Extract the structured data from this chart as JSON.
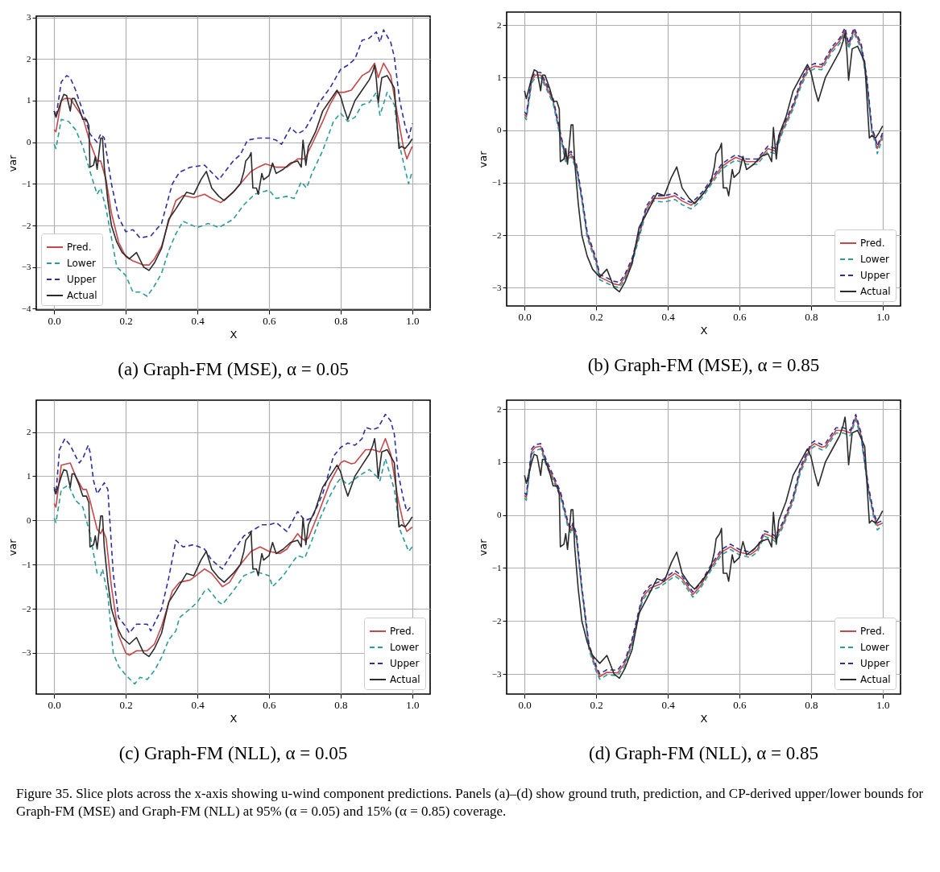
{
  "chart_data": [
    {
      "type": "line",
      "title": "(a) Graph-FM (MSE), α = 0.05",
      "xlabel": "X",
      "ylabel": "var",
      "xlim": [
        -0.05,
        1.05
      ],
      "ylim": [
        -4.03,
        3.03
      ],
      "xticks": [
        {
          "value": 0,
          "label": "0.0"
        },
        {
          "value": 0.2,
          "label": "0.2"
        },
        {
          "value": 0.4,
          "label": "0.4"
        },
        {
          "value": 0.6,
          "label": "0.6"
        },
        {
          "value": 0.8,
          "label": "0.8"
        },
        {
          "value": 1,
          "label": "1.0"
        }
      ],
      "yticks": [
        -4,
        -3,
        -2,
        -1,
        0,
        1,
        2,
        3
      ],
      "grid": true,
      "legend": "bottom left",
      "series": [
        {
          "name": "Pred.",
          "color": "#c8474a",
          "line_style": "solid",
          "x": [
            0,
            0.005,
            0.02,
            0.03,
            0.045,
            0.06,
            0.08,
            0.1,
            0.12,
            0.13,
            0.145,
            0.16,
            0.18,
            0.2,
            0.22,
            0.25,
            0.265,
            0.28,
            0.3,
            0.32,
            0.34,
            0.36,
            0.39,
            0.42,
            0.44,
            0.465,
            0.48,
            0.5,
            0.52,
            0.55,
            0.57,
            0.59,
            0.62,
            0.65,
            0.68,
            0.7,
            0.72,
            0.75,
            0.77,
            0.79,
            0.81,
            0.83,
            0.86,
            0.88,
            0.895,
            0.905,
            0.92,
            0.94,
            0.96,
            0.975,
            0.985,
            1.0
          ],
          "values": [
            0.3,
            0.25,
            1.0,
            1.05,
            1.05,
            0.85,
            0.6,
            0.0,
            -0.45,
            -0.45,
            -0.9,
            -1.7,
            -2.4,
            -2.75,
            -2.85,
            -2.95,
            -2.95,
            -2.8,
            -2.5,
            -1.9,
            -1.4,
            -1.28,
            -1.33,
            -1.25,
            -1.35,
            -1.45,
            -1.35,
            -1.2,
            -1.0,
            -0.7,
            -0.6,
            -0.52,
            -0.6,
            -0.6,
            -0.4,
            -0.4,
            -0.05,
            0.5,
            0.9,
            1.2,
            1.2,
            1.25,
            1.6,
            1.7,
            1.9,
            1.55,
            1.9,
            1.6,
            0.6,
            -0.1,
            -0.4,
            -0.1
          ]
        },
        {
          "name": "Lower",
          "color": "#2a9d96",
          "line_style": "dashed",
          "x": [
            0,
            0.005,
            0.02,
            0.04,
            0.06,
            0.08,
            0.1,
            0.12,
            0.13,
            0.145,
            0.16,
            0.175,
            0.2,
            0.22,
            0.24,
            0.26,
            0.28,
            0.3,
            0.32,
            0.34,
            0.36,
            0.4,
            0.43,
            0.46,
            0.5,
            0.53,
            0.56,
            0.6,
            0.62,
            0.65,
            0.67,
            0.69,
            0.705,
            0.72,
            0.75,
            0.78,
            0.8,
            0.82,
            0.84,
            0.86,
            0.88,
            0.9,
            0.91,
            0.93,
            0.95,
            0.965,
            0.98,
            0.99,
            1.0
          ],
          "values": [
            -0.05,
            -0.15,
            0.55,
            0.5,
            0.3,
            -0.1,
            -0.7,
            -1.25,
            -1.1,
            -1.6,
            -2.3,
            -3.0,
            -3.2,
            -3.6,
            -3.6,
            -3.7,
            -3.45,
            -3.15,
            -2.6,
            -2.2,
            -1.9,
            -2.05,
            -1.95,
            -2.05,
            -1.85,
            -1.5,
            -1.25,
            -1.15,
            -1.35,
            -1.3,
            -1.35,
            -0.95,
            -1.1,
            -0.75,
            -0.2,
            0.5,
            0.7,
            0.5,
            0.6,
            0.9,
            0.95,
            1.2,
            0.65,
            1.2,
            0.9,
            -0.1,
            -0.65,
            -1.0,
            -0.7
          ]
        },
        {
          "name": "Upper",
          "color": "#2e2e9e",
          "line_style": "dashed",
          "x": [
            0,
            0.005,
            0.02,
            0.035,
            0.045,
            0.06,
            0.08,
            0.1,
            0.12,
            0.13,
            0.14,
            0.16,
            0.18,
            0.2,
            0.22,
            0.24,
            0.27,
            0.3,
            0.33,
            0.35,
            0.38,
            0.42,
            0.46,
            0.5,
            0.52,
            0.54,
            0.57,
            0.6,
            0.62,
            0.635,
            0.66,
            0.68,
            0.7,
            0.72,
            0.74,
            0.77,
            0.8,
            0.82,
            0.84,
            0.86,
            0.88,
            0.9,
            0.91,
            0.92,
            0.94,
            0.95,
            0.965,
            0.98,
            0.99,
            1.0
          ],
          "values": [
            0.75,
            0.6,
            1.45,
            1.6,
            1.55,
            1.25,
            0.75,
            0.2,
            0.0,
            0.2,
            0.1,
            -1.0,
            -1.8,
            -2.15,
            -2.1,
            -2.3,
            -2.25,
            -1.95,
            -1.0,
            -0.72,
            -0.6,
            -0.55,
            -0.9,
            -0.45,
            -0.3,
            0.05,
            0.1,
            0.1,
            0.05,
            -0.05,
            0.35,
            0.2,
            0.3,
            0.6,
            0.95,
            1.3,
            1.75,
            1.85,
            2.0,
            2.45,
            2.5,
            2.65,
            2.4,
            2.7,
            2.4,
            2.05,
            1.0,
            0.4,
            0.1,
            0.45
          ]
        },
        {
          "name": "Actual",
          "color": "#2b2b2b",
          "line_style": "solid",
          "x": [
            0,
            0.005,
            0.02,
            0.027,
            0.035,
            0.045,
            0.05,
            0.057,
            0.07,
            0.08,
            0.09,
            0.097,
            0.1,
            0.11,
            0.115,
            0.12,
            0.13,
            0.135,
            0.14,
            0.15,
            0.16,
            0.175,
            0.19,
            0.21,
            0.23,
            0.25,
            0.265,
            0.28,
            0.3,
            0.32,
            0.34,
            0.37,
            0.39,
            0.41,
            0.425,
            0.44,
            0.46,
            0.475,
            0.5,
            0.52,
            0.53,
            0.535,
            0.545,
            0.55,
            0.555,
            0.565,
            0.57,
            0.58,
            0.585,
            0.6,
            0.61,
            0.62,
            0.64,
            0.66,
            0.68,
            0.69,
            0.695,
            0.703,
            0.71,
            0.73,
            0.75,
            0.77,
            0.79,
            0.8,
            0.81,
            0.82,
            0.84,
            0.86,
            0.88,
            0.89,
            0.895,
            0.9,
            0.905,
            0.915,
            0.93,
            0.95,
            0.963,
            0.97,
            0.98,
            0.99,
            1.0
          ],
          "values": [
            0.75,
            0.6,
            1.0,
            1.15,
            1.12,
            0.75,
            1.05,
            1.05,
            0.8,
            0.55,
            0.55,
            0.4,
            -0.6,
            -0.55,
            -0.35,
            -0.65,
            0.1,
            0.1,
            -0.6,
            -1.4,
            -2.0,
            -2.4,
            -2.65,
            -2.8,
            -2.65,
            -3.0,
            -3.08,
            -2.9,
            -2.55,
            -1.85,
            -1.6,
            -1.2,
            -1.25,
            -0.9,
            -0.7,
            -1.1,
            -1.3,
            -1.4,
            -1.2,
            -1.0,
            -0.7,
            -0.45,
            -0.35,
            -0.25,
            -1.1,
            -1.1,
            -1.25,
            -0.75,
            -0.9,
            -0.8,
            -0.5,
            -0.75,
            -0.65,
            -0.5,
            -0.45,
            -0.6,
            0.05,
            -0.55,
            -0.1,
            0.25,
            0.75,
            1.0,
            1.25,
            1.1,
            0.8,
            0.55,
            1.0,
            1.25,
            1.5,
            1.7,
            1.85,
            1.5,
            0.95,
            1.55,
            1.6,
            1.3,
            -0.15,
            -0.1,
            -0.15,
            -0.05,
            0.08
          ]
        }
      ]
    },
    {
      "type": "line",
      "title": "(b) Graph-FM (MSE), α = 0.85",
      "xlabel": "X",
      "ylabel": "var",
      "xlim": [
        -0.05,
        1.05
      ],
      "ylim": [
        -3.35,
        2.25
      ],
      "xticks": [
        {
          "value": 0,
          "label": "0.0"
        },
        {
          "value": 0.2,
          "label": "0.2"
        },
        {
          "value": 0.4,
          "label": "0.4"
        },
        {
          "value": 0.6,
          "label": "0.6"
        },
        {
          "value": 0.8,
          "label": "0.8"
        },
        {
          "value": 1,
          "label": "1.0"
        }
      ],
      "yticks": [
        -3,
        -2,
        -1,
        0,
        1,
        2
      ],
      "grid": true,
      "legend": "bottom right",
      "x": [
        0,
        0.005,
        0.02,
        0.03,
        0.045,
        0.06,
        0.08,
        0.1,
        0.115,
        0.13,
        0.145,
        0.16,
        0.175,
        0.2,
        0.21,
        0.25,
        0.265,
        0.28,
        0.3,
        0.32,
        0.34,
        0.36,
        0.39,
        0.42,
        0.44,
        0.465,
        0.48,
        0.5,
        0.52,
        0.55,
        0.57,
        0.59,
        0.62,
        0.65,
        0.68,
        0.7,
        0.72,
        0.75,
        0.77,
        0.79,
        0.81,
        0.83,
        0.86,
        0.88,
        0.895,
        0.905,
        0.92,
        0.94,
        0.955,
        0.97,
        0.98,
        0.985,
        1.0
      ],
      "series": [
        {
          "name": "Pred.",
          "color": "#c8474a",
          "line_style": "solid",
          "values": [
            0.3,
            0.25,
            0.95,
            1.05,
            1.05,
            0.85,
            0.55,
            -0.1,
            -0.55,
            -0.45,
            -0.7,
            -1.3,
            -2.0,
            -2.5,
            -2.8,
            -2.93,
            -2.95,
            -2.8,
            -2.5,
            -2.0,
            -1.5,
            -1.3,
            -1.3,
            -1.25,
            -1.35,
            -1.43,
            -1.35,
            -1.2,
            -1.0,
            -0.7,
            -0.6,
            -0.52,
            -0.6,
            -0.6,
            -0.35,
            -0.4,
            0.0,
            0.45,
            0.85,
            1.15,
            1.22,
            1.2,
            1.55,
            1.7,
            1.9,
            1.6,
            1.9,
            1.6,
            1.0,
            0.0,
            -0.2,
            -0.35,
            -0.1
          ]
        },
        {
          "name": "Lower",
          "color": "#2a9d96",
          "line_style": "dashed",
          "values": [
            0.25,
            0.2,
            0.9,
            1.0,
            1.0,
            0.8,
            0.5,
            -0.15,
            -0.6,
            -0.5,
            -0.75,
            -1.35,
            -2.05,
            -2.55,
            -2.85,
            -2.98,
            -3.0,
            -2.85,
            -2.55,
            -2.05,
            -1.55,
            -1.35,
            -1.37,
            -1.32,
            -1.42,
            -1.5,
            -1.42,
            -1.25,
            -1.05,
            -0.75,
            -0.65,
            -0.57,
            -0.65,
            -0.65,
            -0.4,
            -0.45,
            -0.05,
            0.4,
            0.8,
            1.1,
            1.17,
            1.15,
            1.5,
            1.65,
            1.85,
            1.55,
            1.85,
            1.55,
            0.95,
            -0.05,
            -0.25,
            -0.45,
            -0.15
          ]
        },
        {
          "name": "Upper",
          "color": "#2e2e9e",
          "line_style": "dashed",
          "values": [
            0.35,
            0.3,
            1.0,
            1.1,
            1.1,
            0.9,
            0.6,
            -0.05,
            -0.5,
            -0.4,
            -0.65,
            -1.25,
            -1.95,
            -2.45,
            -2.75,
            -2.88,
            -2.9,
            -2.75,
            -2.45,
            -1.95,
            -1.45,
            -1.25,
            -1.25,
            -1.2,
            -1.3,
            -1.38,
            -1.3,
            -1.15,
            -0.95,
            -0.65,
            -0.55,
            -0.47,
            -0.55,
            -0.55,
            -0.3,
            -0.35,
            0.05,
            0.5,
            0.9,
            1.2,
            1.27,
            1.25,
            1.6,
            1.75,
            1.95,
            1.65,
            1.95,
            1.65,
            1.05,
            0.05,
            -0.15,
            -0.3,
            -0.05
          ]
        },
        {
          "name": "Actual",
          "color": "#2b2b2b",
          "line_style": "solid",
          "x": [
            0,
            0.005,
            0.02,
            0.027,
            0.035,
            0.045,
            0.05,
            0.057,
            0.07,
            0.08,
            0.09,
            0.097,
            0.1,
            0.11,
            0.115,
            0.12,
            0.13,
            0.135,
            0.14,
            0.15,
            0.16,
            0.175,
            0.19,
            0.21,
            0.23,
            0.25,
            0.265,
            0.28,
            0.3,
            0.32,
            0.34,
            0.37,
            0.39,
            0.41,
            0.425,
            0.44,
            0.46,
            0.475,
            0.5,
            0.52,
            0.53,
            0.535,
            0.545,
            0.55,
            0.555,
            0.565,
            0.57,
            0.58,
            0.585,
            0.6,
            0.61,
            0.62,
            0.64,
            0.66,
            0.68,
            0.69,
            0.695,
            0.703,
            0.71,
            0.73,
            0.75,
            0.77,
            0.79,
            0.8,
            0.81,
            0.82,
            0.84,
            0.86,
            0.88,
            0.89,
            0.895,
            0.9,
            0.905,
            0.915,
            0.93,
            0.95,
            0.963,
            0.97,
            0.98,
            0.99,
            1.0
          ],
          "values": [
            0.75,
            0.6,
            1.0,
            1.15,
            1.12,
            0.75,
            1.05,
            1.05,
            0.8,
            0.55,
            0.55,
            0.4,
            -0.6,
            -0.55,
            -0.35,
            -0.65,
            0.1,
            0.1,
            -0.6,
            -1.4,
            -2.0,
            -2.4,
            -2.65,
            -2.8,
            -2.65,
            -3.0,
            -3.08,
            -2.9,
            -2.55,
            -1.85,
            -1.6,
            -1.2,
            -1.25,
            -0.9,
            -0.7,
            -1.1,
            -1.3,
            -1.4,
            -1.2,
            -1.0,
            -0.7,
            -0.45,
            -0.35,
            -0.25,
            -1.1,
            -1.1,
            -1.25,
            -0.75,
            -0.9,
            -0.8,
            -0.5,
            -0.75,
            -0.65,
            -0.5,
            -0.45,
            -0.6,
            0.05,
            -0.55,
            -0.1,
            0.25,
            0.75,
            1.0,
            1.25,
            1.1,
            0.8,
            0.55,
            1.0,
            1.25,
            1.5,
            1.7,
            1.85,
            1.5,
            0.95,
            1.55,
            1.6,
            1.3,
            -0.15,
            -0.1,
            -0.15,
            -0.05,
            0.08
          ]
        }
      ]
    },
    {
      "type": "line",
      "title": "(c) Graph-FM (NLL), α = 0.05",
      "xlabel": "X",
      "ylabel": "var",
      "xlim": [
        -0.05,
        1.05
      ],
      "ylim": [
        -3.93,
        2.72
      ],
      "xticks": [
        {
          "value": 0,
          "label": "0.0"
        },
        {
          "value": 0.2,
          "label": "0.2"
        },
        {
          "value": 0.4,
          "label": "0.4"
        },
        {
          "value": 0.6,
          "label": "0.6"
        },
        {
          "value": 0.8,
          "label": "0.8"
        },
        {
          "value": 1,
          "label": "1.0"
        }
      ],
      "yticks": [
        -3,
        -2,
        -1,
        0,
        1,
        2
      ],
      "grid": true,
      "legend": "bottom right",
      "series": [
        {
          "name": "Pred.",
          "color": "#c8474a",
          "line_style": "solid",
          "x": [
            0,
            0.005,
            0.02,
            0.045,
            0.06,
            0.08,
            0.09,
            0.1,
            0.12,
            0.13,
            0.135,
            0.145,
            0.16,
            0.18,
            0.2,
            0.21,
            0.23,
            0.26,
            0.28,
            0.3,
            0.33,
            0.35,
            0.38,
            0.42,
            0.44,
            0.47,
            0.49,
            0.52,
            0.55,
            0.575,
            0.6,
            0.63,
            0.65,
            0.68,
            0.69,
            0.7,
            0.71,
            0.74,
            0.77,
            0.8,
            0.81,
            0.83,
            0.84,
            0.87,
            0.89,
            0.91,
            0.925,
            0.94,
            0.96,
            0.975,
            0.985,
            1.0
          ],
          "values": [
            0.38,
            0.3,
            1.25,
            1.3,
            1.0,
            0.7,
            0.7,
            0.45,
            -0.2,
            -0.3,
            -0.2,
            -0.4,
            -1.5,
            -2.6,
            -3.0,
            -3.05,
            -2.95,
            -2.95,
            -2.8,
            -2.4,
            -1.6,
            -1.4,
            -1.35,
            -1.1,
            -1.2,
            -1.5,
            -1.4,
            -1.0,
            -0.7,
            -0.6,
            -0.7,
            -0.75,
            -0.65,
            -0.3,
            -0.4,
            -0.45,
            -0.4,
            0.2,
            0.85,
            1.3,
            1.35,
            1.28,
            1.3,
            1.6,
            1.6,
            1.55,
            1.85,
            1.5,
            0.5,
            -0.05,
            -0.25,
            -0.15
          ]
        },
        {
          "name": "Lower",
          "color": "#2a9d96",
          "line_style": "dashed",
          "x": [
            0,
            0.005,
            0.02,
            0.04,
            0.06,
            0.08,
            0.1,
            0.12,
            0.13,
            0.135,
            0.15,
            0.165,
            0.18,
            0.2,
            0.225,
            0.24,
            0.26,
            0.28,
            0.3,
            0.32,
            0.34,
            0.35,
            0.38,
            0.4,
            0.42,
            0.43,
            0.46,
            0.47,
            0.5,
            0.53,
            0.56,
            0.58,
            0.6,
            0.61,
            0.64,
            0.67,
            0.68,
            0.7,
            0.72,
            0.74,
            0.77,
            0.79,
            0.8,
            0.82,
            0.85,
            0.88,
            0.9,
            0.91,
            0.925,
            0.95,
            0.965,
            0.98,
            0.99,
            1.0
          ],
          "values": [
            0.05,
            -0.05,
            0.7,
            0.8,
            0.45,
            0.3,
            -0.3,
            -1.2,
            -1.25,
            -1.1,
            -1.7,
            -3.0,
            -3.3,
            -3.5,
            -3.7,
            -3.55,
            -3.6,
            -3.4,
            -3.1,
            -2.7,
            -2.5,
            -2.2,
            -2.0,
            -1.85,
            -1.6,
            -1.55,
            -1.85,
            -1.9,
            -1.6,
            -1.25,
            -1.15,
            -1.2,
            -1.25,
            -1.5,
            -1.25,
            -0.9,
            -0.8,
            -0.85,
            -0.45,
            0.0,
            0.55,
            0.85,
            0.95,
            0.8,
            1.0,
            1.15,
            1.0,
            0.9,
            1.4,
            0.7,
            -0.2,
            -0.5,
            -0.7,
            -0.6
          ]
        },
        {
          "name": "Upper",
          "color": "#2e2e9e",
          "line_style": "dashed",
          "x": [
            0,
            0.005,
            0.015,
            0.03,
            0.045,
            0.06,
            0.07,
            0.08,
            0.095,
            0.1,
            0.11,
            0.12,
            0.14,
            0.15,
            0.165,
            0.18,
            0.2,
            0.21,
            0.23,
            0.26,
            0.27,
            0.3,
            0.32,
            0.34,
            0.36,
            0.39,
            0.42,
            0.44,
            0.47,
            0.5,
            0.53,
            0.56,
            0.58,
            0.6,
            0.62,
            0.65,
            0.68,
            0.7,
            0.72,
            0.75,
            0.78,
            0.8,
            0.82,
            0.84,
            0.86,
            0.87,
            0.89,
            0.905,
            0.925,
            0.94,
            0.95,
            0.96,
            0.975,
            0.985,
            1.0
          ],
          "values": [
            0.7,
            0.6,
            1.6,
            1.85,
            1.7,
            1.45,
            1.3,
            1.4,
            1.7,
            1.55,
            0.9,
            0.6,
            0.85,
            0.7,
            -1.2,
            -2.2,
            -2.4,
            -2.55,
            -2.35,
            -2.35,
            -2.5,
            -2.0,
            -1.3,
            -0.45,
            -0.6,
            -0.55,
            -0.65,
            -0.9,
            -1.1,
            -0.7,
            -0.35,
            -0.2,
            -0.1,
            -0.1,
            -0.05,
            -0.25,
            0.2,
            0.0,
            0.05,
            0.6,
            1.45,
            1.65,
            1.75,
            1.7,
            1.85,
            2.1,
            2.05,
            2.1,
            2.4,
            2.25,
            1.95,
            1.1,
            0.5,
            0.2,
            0.35
          ]
        },
        {
          "name": "Actual",
          "color": "#2b2b2b",
          "line_style": "solid",
          "x": [
            0,
            0.005,
            0.02,
            0.027,
            0.035,
            0.045,
            0.05,
            0.057,
            0.07,
            0.08,
            0.09,
            0.097,
            0.1,
            0.11,
            0.115,
            0.12,
            0.13,
            0.135,
            0.14,
            0.15,
            0.16,
            0.175,
            0.19,
            0.21,
            0.23,
            0.25,
            0.265,
            0.28,
            0.3,
            0.32,
            0.34,
            0.37,
            0.39,
            0.41,
            0.425,
            0.44,
            0.46,
            0.475,
            0.5,
            0.52,
            0.53,
            0.535,
            0.545,
            0.55,
            0.555,
            0.565,
            0.57,
            0.58,
            0.585,
            0.6,
            0.61,
            0.62,
            0.64,
            0.66,
            0.68,
            0.69,
            0.695,
            0.703,
            0.71,
            0.73,
            0.75,
            0.77,
            0.79,
            0.8,
            0.81,
            0.82,
            0.84,
            0.86,
            0.88,
            0.89,
            0.895,
            0.9,
            0.905,
            0.915,
            0.93,
            0.95,
            0.963,
            0.97,
            0.98,
            0.99,
            1.0
          ],
          "values": [
            0.75,
            0.6,
            1.0,
            1.15,
            1.12,
            0.75,
            1.05,
            1.05,
            0.8,
            0.55,
            0.55,
            0.4,
            -0.6,
            -0.55,
            -0.35,
            -0.65,
            0.1,
            0.1,
            -0.6,
            -1.4,
            -2.0,
            -2.4,
            -2.65,
            -2.8,
            -2.65,
            -3.0,
            -3.08,
            -2.9,
            -2.55,
            -1.85,
            -1.6,
            -1.2,
            -1.25,
            -0.9,
            -0.7,
            -1.1,
            -1.3,
            -1.4,
            -1.2,
            -1.0,
            -0.7,
            -0.45,
            -0.35,
            -0.25,
            -1.1,
            -1.1,
            -1.25,
            -0.75,
            -0.9,
            -0.8,
            -0.5,
            -0.75,
            -0.65,
            -0.5,
            -0.45,
            -0.6,
            0.05,
            -0.55,
            -0.1,
            0.25,
            0.75,
            1.0,
            1.25,
            1.1,
            0.8,
            0.55,
            1.0,
            1.25,
            1.5,
            1.7,
            1.85,
            1.5,
            0.95,
            1.55,
            1.6,
            1.3,
            -0.15,
            -0.1,
            -0.15,
            -0.05,
            0.08
          ]
        }
      ]
    },
    {
      "type": "line",
      "title": "(d) Graph-FM (NLL), α = 0.85",
      "xlabel": "X",
      "ylabel": "var",
      "xlim": [
        -0.05,
        1.05
      ],
      "ylim": [
        -3.38,
        2.17
      ],
      "xticks": [
        {
          "value": 0,
          "label": "0.0"
        },
        {
          "value": 0.2,
          "label": "0.2"
        },
        {
          "value": 0.4,
          "label": "0.4"
        },
        {
          "value": 0.6,
          "label": "0.6"
        },
        {
          "value": 0.8,
          "label": "0.8"
        },
        {
          "value": 1,
          "label": "1.0"
        }
      ],
      "yticks": [
        -3,
        -2,
        -1,
        0,
        1,
        2
      ],
      "grid": true,
      "legend": "bottom right",
      "annotations": [
        "Figure 35. Slice plots across the x-axis showing u-wind component predictions. Panels (a)–(d) show ground truth, prediction, and CP-derived upper/lower bounds for Graph-FM (MSE) and Graph-FM (NLL) at 95% (α = 0.05) and 15% (α = 0.85) coverage."
      ],
      "x": [
        0,
        0.005,
        0.02,
        0.03,
        0.045,
        0.06,
        0.08,
        0.1,
        0.12,
        0.13,
        0.135,
        0.145,
        0.16,
        0.18,
        0.2,
        0.21,
        0.23,
        0.26,
        0.28,
        0.3,
        0.33,
        0.35,
        0.38,
        0.42,
        0.44,
        0.47,
        0.49,
        0.52,
        0.55,
        0.575,
        0.6,
        0.63,
        0.65,
        0.67,
        0.69,
        0.7,
        0.72,
        0.75,
        0.77,
        0.8,
        0.81,
        0.83,
        0.84,
        0.87,
        0.89,
        0.91,
        0.925,
        0.94,
        0.96,
        0.975,
        0.985,
        1.0
      ],
      "series": [
        {
          "name": "Pred.",
          "color": "#c8474a",
          "line_style": "solid",
          "values": [
            0.37,
            0.33,
            1.2,
            1.28,
            1.3,
            1.0,
            0.7,
            0.4,
            -0.15,
            -0.3,
            -0.2,
            -0.4,
            -1.4,
            -2.5,
            -2.9,
            -3.05,
            -2.97,
            -2.98,
            -2.8,
            -2.4,
            -1.55,
            -1.38,
            -1.3,
            -1.1,
            -1.2,
            -1.5,
            -1.35,
            -1.0,
            -0.7,
            -0.6,
            -0.7,
            -0.75,
            -0.65,
            -0.35,
            -0.4,
            -0.45,
            -0.2,
            0.3,
            0.85,
            1.3,
            1.35,
            1.28,
            1.3,
            1.6,
            1.6,
            1.55,
            1.85,
            1.5,
            0.5,
            0.0,
            -0.2,
            -0.15
          ]
        },
        {
          "name": "Lower",
          "color": "#2a9d96",
          "line_style": "dashed",
          "values": [
            0.32,
            0.28,
            1.15,
            1.22,
            1.25,
            0.95,
            0.65,
            0.35,
            -0.2,
            -0.35,
            -0.25,
            -0.45,
            -1.45,
            -2.55,
            -2.95,
            -3.1,
            -3.02,
            -3.03,
            -2.85,
            -2.45,
            -1.6,
            -1.43,
            -1.35,
            -1.15,
            -1.25,
            -1.55,
            -1.4,
            -1.05,
            -0.75,
            -0.65,
            -0.75,
            -0.8,
            -0.7,
            -0.4,
            -0.45,
            -0.5,
            -0.25,
            0.25,
            0.8,
            1.25,
            1.3,
            1.23,
            1.25,
            1.55,
            1.55,
            1.5,
            1.8,
            1.45,
            0.45,
            -0.05,
            -0.28,
            -0.2
          ]
        },
        {
          "name": "Upper",
          "color": "#2e2e9e",
          "line_style": "dashed",
          "values": [
            0.42,
            0.38,
            1.25,
            1.33,
            1.35,
            1.05,
            0.75,
            0.45,
            -0.1,
            -0.25,
            -0.15,
            -0.35,
            -1.35,
            -2.45,
            -2.85,
            -3.0,
            -2.92,
            -2.93,
            -2.75,
            -2.35,
            -1.5,
            -1.33,
            -1.25,
            -1.05,
            -1.15,
            -1.45,
            -1.3,
            -0.95,
            -0.65,
            -0.55,
            -0.65,
            -0.7,
            -0.6,
            -0.3,
            -0.35,
            -0.4,
            -0.15,
            0.35,
            0.9,
            1.35,
            1.4,
            1.33,
            1.35,
            1.65,
            1.65,
            1.6,
            1.9,
            1.55,
            0.55,
            0.05,
            -0.15,
            -0.1
          ]
        },
        {
          "name": "Actual",
          "color": "#2b2b2b",
          "line_style": "solid",
          "x": [
            0,
            0.005,
            0.02,
            0.027,
            0.035,
            0.045,
            0.05,
            0.057,
            0.07,
            0.08,
            0.09,
            0.097,
            0.1,
            0.11,
            0.115,
            0.12,
            0.13,
            0.135,
            0.14,
            0.15,
            0.16,
            0.175,
            0.19,
            0.21,
            0.23,
            0.25,
            0.265,
            0.28,
            0.3,
            0.32,
            0.34,
            0.37,
            0.39,
            0.41,
            0.425,
            0.44,
            0.46,
            0.475,
            0.5,
            0.52,
            0.53,
            0.535,
            0.545,
            0.55,
            0.555,
            0.565,
            0.57,
            0.58,
            0.585,
            0.6,
            0.61,
            0.62,
            0.64,
            0.66,
            0.68,
            0.69,
            0.695,
            0.703,
            0.71,
            0.73,
            0.75,
            0.77,
            0.79,
            0.8,
            0.81,
            0.82,
            0.84,
            0.86,
            0.88,
            0.89,
            0.895,
            0.9,
            0.905,
            0.915,
            0.93,
            0.95,
            0.963,
            0.97,
            0.98,
            0.99,
            1.0
          ],
          "values": [
            0.75,
            0.6,
            1.0,
            1.15,
            1.12,
            0.75,
            1.05,
            1.05,
            0.8,
            0.55,
            0.55,
            0.4,
            -0.6,
            -0.55,
            -0.35,
            -0.65,
            0.1,
            0.1,
            -0.6,
            -1.4,
            -2.0,
            -2.4,
            -2.65,
            -2.8,
            -2.65,
            -3.0,
            -3.08,
            -2.9,
            -2.55,
            -1.85,
            -1.6,
            -1.2,
            -1.25,
            -0.9,
            -0.7,
            -1.1,
            -1.3,
            -1.4,
            -1.2,
            -1.0,
            -0.7,
            -0.45,
            -0.35,
            -0.25,
            -1.1,
            -1.1,
            -1.25,
            -0.75,
            -0.9,
            -0.8,
            -0.5,
            -0.75,
            -0.65,
            -0.5,
            -0.45,
            -0.6,
            0.05,
            -0.55,
            -0.1,
            0.25,
            0.75,
            1.0,
            1.25,
            1.1,
            0.8,
            0.55,
            1.0,
            1.25,
            1.5,
            1.7,
            1.85,
            1.5,
            0.95,
            1.55,
            1.6,
            1.3,
            -0.15,
            -0.1,
            -0.15,
            -0.05,
            0.08
          ]
        }
      ]
    }
  ]
}
